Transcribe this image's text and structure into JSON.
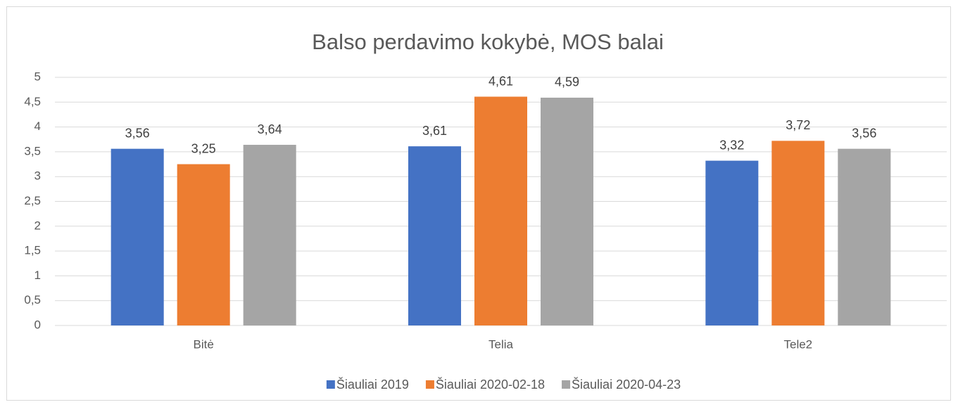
{
  "chart_data": {
    "type": "bar",
    "title": "Balso perdavimo kokybė, MOS balai",
    "categories": [
      "Bitė",
      "Telia",
      "Tele2"
    ],
    "series": [
      {
        "name": "Šiauliai 2019",
        "color": "#4472c4",
        "values": [
          3.56,
          3.61,
          3.32
        ],
        "value_labels": [
          "3,56",
          "3,61",
          "3,32"
        ]
      },
      {
        "name": "Šiauliai 2020-02-18",
        "color": "#ed7d31",
        "values": [
          3.25,
          4.61,
          3.72
        ],
        "value_labels": [
          "3,25",
          "4,61",
          "3,72"
        ]
      },
      {
        "name": "Šiauliai 2020-04-23",
        "color": "#a5a5a5",
        "values": [
          3.64,
          4.59,
          3.56
        ],
        "value_labels": [
          "3,64",
          "4,59",
          "3,56"
        ]
      }
    ],
    "ylim": [
      0,
      5
    ],
    "yticks": [
      0,
      {
        "value": 0.5,
        "label": "0,5"
      },
      1,
      {
        "value": 1.5,
        "label": "1,5"
      },
      2,
      {
        "value": 2.5,
        "label": "2,5"
      },
      3,
      {
        "value": 3.5,
        "label": "3,5"
      },
      4,
      {
        "value": 4.5,
        "label": "4,5"
      },
      5
    ],
    "grid": true,
    "legend": "bottom"
  }
}
